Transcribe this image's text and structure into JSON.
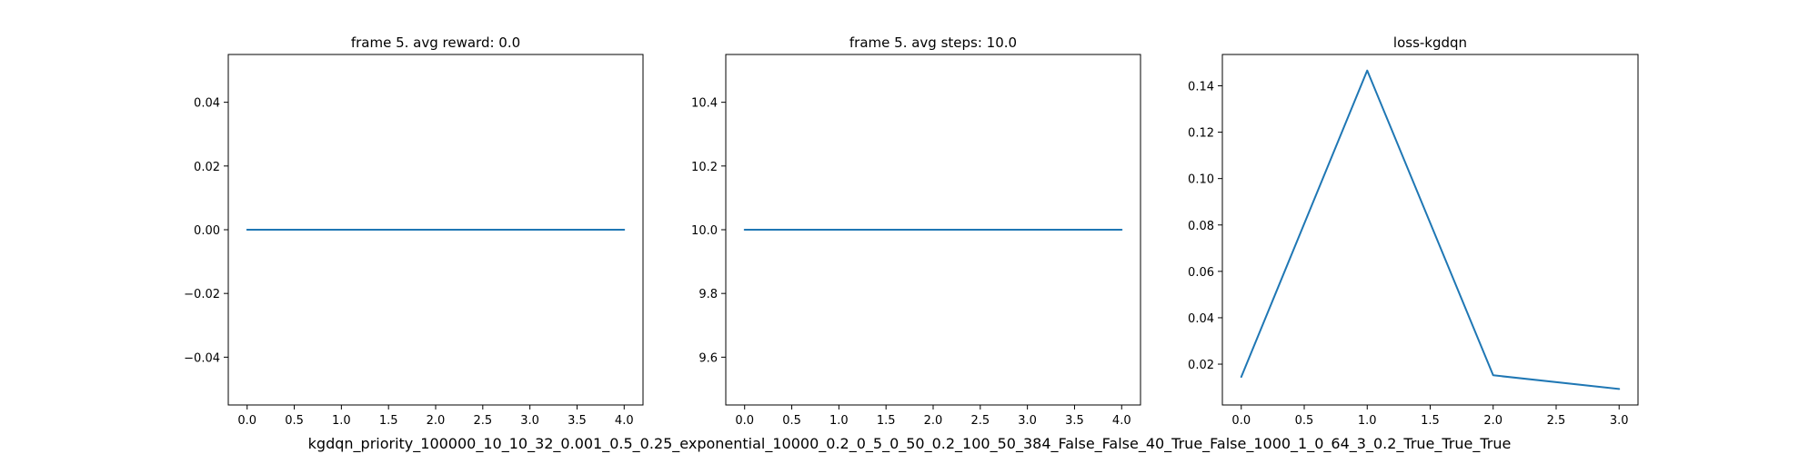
{
  "figure_title": "kgdqn_priority_100000_10_10_32_0.001_0.5_0.25_exponential_10000_0.2_0_5_0_50_0.2_100_50_384_False_False_40_True_False_1000_1_0_64_3_0.2_True_True_True",
  "colors": {
    "series": "#1f77b4",
    "axes": "#000000",
    "background": "#ffffff"
  },
  "chart_data": [
    {
      "type": "line",
      "title": "frame 5. avg reward: 0.0",
      "xlabel": "",
      "ylabel": "",
      "x": [
        0,
        1,
        2,
        3,
        4
      ],
      "series": [
        {
          "values": [
            0.0,
            0.0,
            0.0,
            0.0,
            0.0
          ]
        }
      ],
      "xlim": [
        -0.2,
        4.2
      ],
      "ylim": [
        -0.055,
        0.055
      ],
      "xticks": [
        0.0,
        0.5,
        1.0,
        1.5,
        2.0,
        2.5,
        3.0,
        3.5,
        4.0
      ],
      "xtick_labels": [
        "0.0",
        "0.5",
        "1.0",
        "1.5",
        "2.0",
        "2.5",
        "3.0",
        "3.5",
        "4.0"
      ],
      "yticks": [
        -0.04,
        -0.02,
        0.0,
        0.02,
        0.04
      ],
      "ytick_labels": [
        "−0.04",
        "−0.02",
        "0.00",
        "0.02",
        "0.04"
      ],
      "grid": false,
      "legend": "none"
    },
    {
      "type": "line",
      "title": "frame 5. avg steps: 10.0",
      "xlabel": "",
      "ylabel": "",
      "x": [
        0,
        1,
        2,
        3,
        4
      ],
      "series": [
        {
          "values": [
            10.0,
            10.0,
            10.0,
            10.0,
            10.0
          ]
        }
      ],
      "xlim": [
        -0.2,
        4.2
      ],
      "ylim": [
        9.45,
        10.55
      ],
      "xticks": [
        0.0,
        0.5,
        1.0,
        1.5,
        2.0,
        2.5,
        3.0,
        3.5,
        4.0
      ],
      "xtick_labels": [
        "0.0",
        "0.5",
        "1.0",
        "1.5",
        "2.0",
        "2.5",
        "3.0",
        "3.5",
        "4.0"
      ],
      "yticks": [
        9.6,
        9.8,
        10.0,
        10.2,
        10.4
      ],
      "ytick_labels": [
        "9.6",
        "9.8",
        "10.0",
        "10.2",
        "10.4"
      ],
      "grid": false,
      "legend": "none"
    },
    {
      "type": "line",
      "title": "loss-kgdqn",
      "xlabel": "",
      "ylabel": "",
      "x": [
        0,
        1,
        2,
        3
      ],
      "series": [
        {
          "values": [
            0.0145,
            0.1466,
            0.0152,
            0.0093
          ]
        }
      ],
      "xlim": [
        -0.15,
        3.15
      ],
      "ylim": [
        0.0024,
        0.1535
      ],
      "xticks": [
        0.0,
        0.5,
        1.0,
        1.5,
        2.0,
        2.5,
        3.0
      ],
      "xtick_labels": [
        "0.0",
        "0.5",
        "1.0",
        "1.5",
        "2.0",
        "2.5",
        "3.0"
      ],
      "yticks": [
        0.02,
        0.04,
        0.06,
        0.08,
        0.1,
        0.12,
        0.14
      ],
      "ytick_labels": [
        "0.02",
        "0.04",
        "0.06",
        "0.08",
        "0.10",
        "0.12",
        "0.14"
      ],
      "grid": false,
      "legend": "none"
    }
  ]
}
